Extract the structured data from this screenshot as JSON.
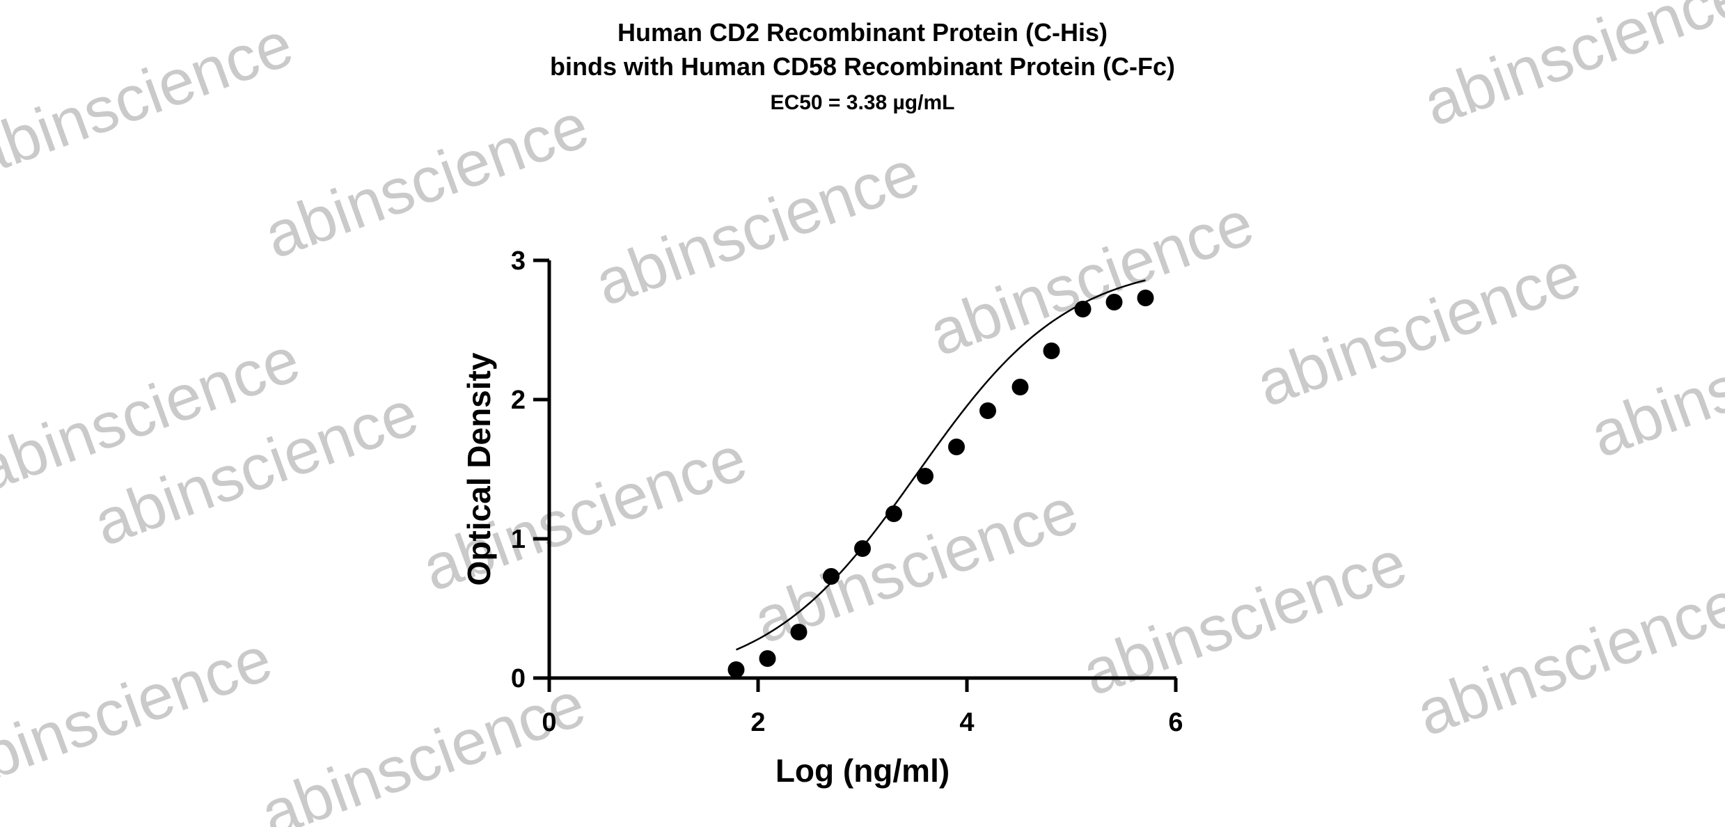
{
  "chart_data": {
    "type": "scatter",
    "title_lines": [
      "Human CD2 Recombinant Protein (C-His)",
      "binds with Human CD58 Recombinant Protein (C-Fc)",
      "EC50 = 3.38 µg/mL"
    ],
    "xlabel": "Log (ng/ml)",
    "ylabel": "Optical Density",
    "xlim": [
      0,
      6
    ],
    "ylim": [
      0,
      3
    ],
    "x_ticks": [
      "0",
      "2",
      "4",
      "6"
    ],
    "y_ticks": [
      "0",
      "1",
      "2",
      "3"
    ],
    "grid": false,
    "legend": "none",
    "series": [
      {
        "marker": "filled-circle",
        "color": "#000000",
        "x": [
          1.79,
          2.09,
          2.39,
          2.7,
          3.0,
          3.3,
          3.6,
          3.9,
          4.2,
          4.51,
          4.81,
          5.11,
          5.41,
          5.71
        ],
        "y": [
          0.06,
          0.14,
          0.33,
          0.73,
          0.93,
          1.18,
          1.45,
          1.66,
          1.92,
          2.09,
          2.35,
          2.65,
          2.7,
          2.73
        ]
      }
    ],
    "fit_curve": {
      "model": "4PL",
      "bottom": -0.05,
      "top": 3.0,
      "log_ec50": 3.529,
      "hill_slope": 0.6,
      "x_range": [
        1.79,
        5.71
      ]
    }
  },
  "watermark": {
    "text": "abinscience",
    "color": "#bdbdbd"
  }
}
